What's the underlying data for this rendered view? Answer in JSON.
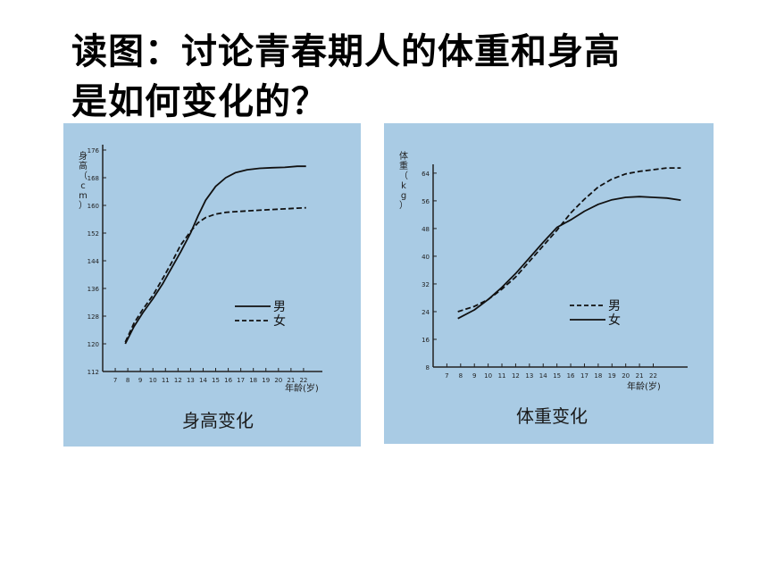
{
  "slide": {
    "title_line1": "读图：讨论青春期人的体重和身高",
    "title_line2": "是如何变化的？"
  },
  "chart_data": [
    {
      "type": "line",
      "caption": "身高变化",
      "ylabel": "身高（cm）",
      "xlabel": "年龄(岁)",
      "x_ticks": [
        7,
        8,
        9,
        10,
        11,
        12,
        13,
        14,
        15,
        16,
        17,
        18,
        19,
        20,
        21,
        22
      ],
      "y_ticks": [
        112,
        120,
        128,
        136,
        144,
        152,
        160,
        168,
        176
      ],
      "xlim": [
        6,
        23.5
      ],
      "ylim": [
        112,
        176
      ],
      "legend": {
        "position": "center-right"
      },
      "series": [
        {
          "name": "男",
          "style": "solid",
          "x": [
            7.8,
            8.5,
            9.2,
            10,
            10.8,
            11.5,
            12.2,
            13,
            13.6,
            14.2,
            15,
            15.8,
            16.6,
            17.5,
            18.5,
            19.5,
            20.5,
            21.5,
            22.2
          ],
          "y": [
            120,
            125,
            129,
            133,
            137.5,
            142,
            146.5,
            152,
            157,
            161.5,
            165.5,
            168,
            169.5,
            170.3,
            170.7,
            170.9,
            171.0,
            171.3,
            171.3
          ]
        },
        {
          "name": "女",
          "style": "dashed",
          "x": [
            7.8,
            8.5,
            9.2,
            10,
            10.8,
            11.5,
            12.2,
            13,
            13.6,
            14.2,
            15,
            15.8,
            16.6,
            17.5,
            18.5,
            19.5,
            20.5,
            21.5,
            22.2
          ],
          "y": [
            120.5,
            126,
            130,
            134,
            139,
            143.5,
            148.5,
            152.5,
            155,
            156.5,
            157.5,
            158,
            158.2,
            158.4,
            158.6,
            158.8,
            159.0,
            159.2,
            159.3
          ]
        }
      ]
    },
    {
      "type": "line",
      "caption": "体重变化",
      "ylabel": "体重（kg）",
      "xlabel": "年龄(岁)",
      "x_ticks": [
        7,
        8,
        9,
        10,
        11,
        12,
        13,
        14,
        15,
        16,
        17,
        18,
        19,
        20,
        21,
        22
      ],
      "y_ticks": [
        8,
        16,
        24,
        32,
        40,
        48,
        56,
        64
      ],
      "xlim": [
        6,
        24.5
      ],
      "ylim": [
        8,
        65
      ],
      "legend": {
        "position": "center-right"
      },
      "series": [
        {
          "name": "男",
          "style": "dashed",
          "x": [
            7.8,
            9,
            10,
            11,
            12,
            13,
            14,
            15,
            16,
            17,
            18,
            19,
            20,
            21,
            22,
            23,
            24
          ],
          "y": [
            24,
            25.5,
            27.5,
            30.5,
            34,
            38.5,
            43,
            47.5,
            52.5,
            56.5,
            60,
            62.3,
            63.8,
            64.5,
            65,
            65.5,
            65.5
          ]
        },
        {
          "name": "女",
          "style": "solid",
          "x": [
            7.8,
            9,
            10,
            11,
            12,
            13,
            14,
            15,
            16,
            17,
            18,
            19,
            20,
            21,
            22,
            23,
            24
          ],
          "y": [
            22,
            24.5,
            27.5,
            31,
            35,
            39.5,
            44,
            48.3,
            50.5,
            53,
            55,
            56.3,
            57,
            57.2,
            57,
            56.8,
            56.2
          ]
        }
      ]
    }
  ]
}
